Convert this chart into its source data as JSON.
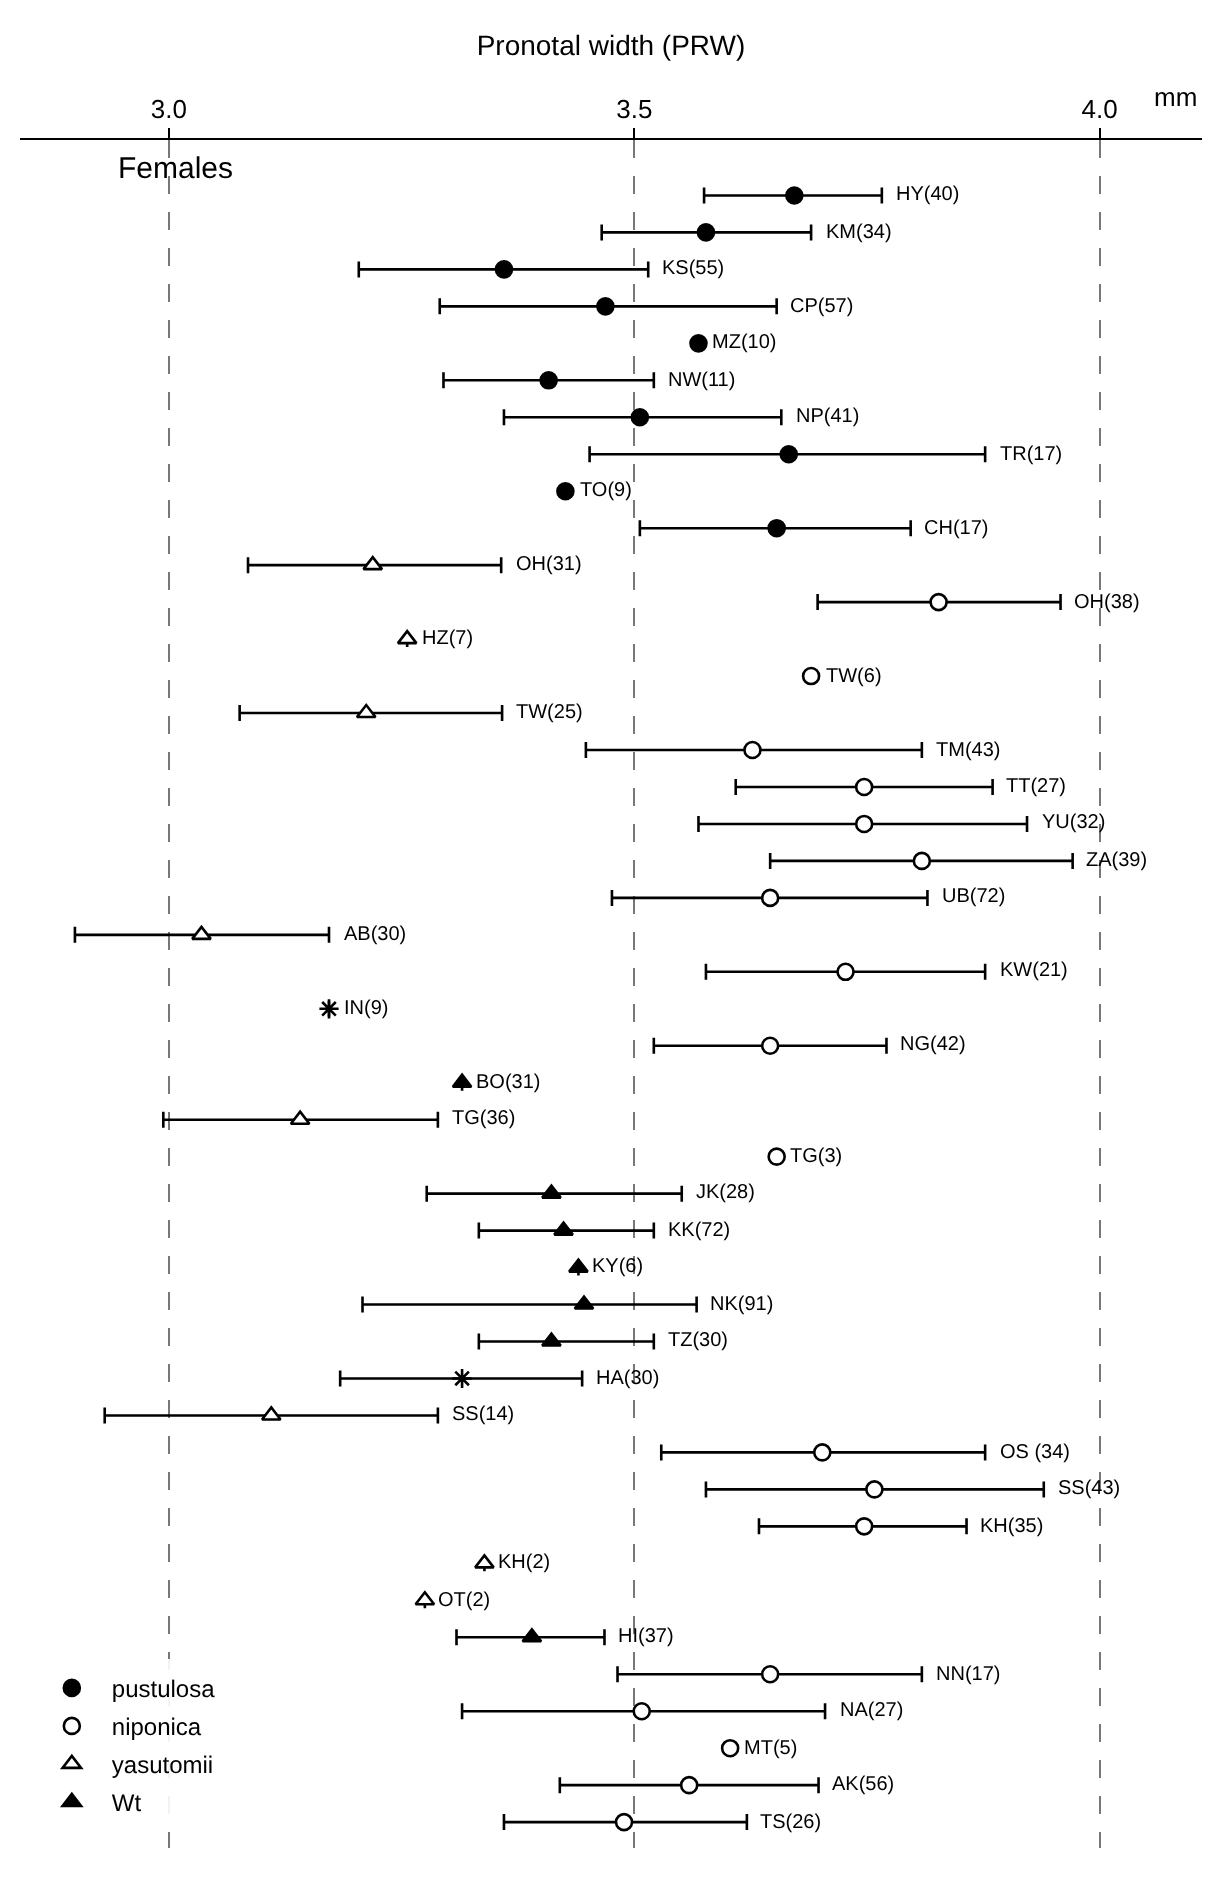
{
  "chart_data": {
    "type": "scatter",
    "orientation": "horizontal",
    "xlabel": "Pronotal width (PRW)",
    "annotations": [
      "Females",
      "mm"
    ],
    "categories": [
      "HY(40)",
      "KM(34)",
      "KS(55)",
      "CP(57)",
      "MZ(10)",
      "NW(11)",
      "NP(41)",
      "TR(17)",
      "TO(9)",
      "CH(17)",
      "OH(31)",
      "OH(38)",
      "HZ(7)",
      "TW(6)",
      "TW(25)",
      "TM(43)",
      "TT(27)",
      "YU(32)",
      "ZA(39)",
      "UB(72)",
      "AB(30)",
      "KW(21)",
      "IN(9)",
      "NG(42)",
      "BO(31)",
      "TG(36)",
      "TG(3)",
      "JK(28)",
      "KK(72)",
      "KY(6)",
      "NK(91)",
      "TZ(30)",
      "HA(30)",
      "SS(14)",
      "OS (34)",
      "SS(43)",
      "KH(35)",
      "KH(2)",
      "OT(2)",
      "HI(37)",
      "NN(17)",
      "NA(27)",
      "MT(5)",
      "AK(56)",
      "TS(26)"
    ],
    "xlim": [
      2.84,
      4.11
    ],
    "xticks": [
      {
        "value": 3.0,
        "label": "3.0"
      },
      {
        "value": 3.5,
        "label": "3.5"
      },
      {
        "value": 4.0,
        "label": "4.0"
      }
    ],
    "grid": "x",
    "tick_labels": "x",
    "legend": "bottom left",
    "series": [
      {
        "name": "pustulosa",
        "color": "#000000",
        "marker": "circle",
        "values": [
          3.672,
          3.577,
          3.36,
          3.469,
          3.569,
          3.408,
          3.506,
          3.666,
          3.426,
          3.653,
          null,
          null,
          null,
          null,
          null,
          null,
          null,
          null,
          null,
          null,
          null,
          null,
          null,
          null,
          null,
          null,
          null,
          null,
          null,
          null,
          null,
          null,
          null,
          null,
          null,
          null,
          null,
          null,
          null,
          null,
          null,
          null,
          null,
          null,
          null
        ],
        "errors": [
          [
            3.575,
            3.766
          ],
          [
            3.465,
            3.69
          ],
          [
            3.204,
            3.515
          ],
          [
            3.291,
            3.653
          ],
          null,
          [
            3.295,
            3.521
          ],
          [
            3.36,
            3.658
          ],
          [
            3.452,
            3.877
          ],
          null,
          [
            3.506,
            3.797
          ],
          null,
          null,
          null,
          null,
          null,
          null,
          null,
          null,
          null,
          null,
          null,
          null,
          null,
          null,
          null,
          null,
          null,
          null,
          null,
          null,
          null,
          null,
          null,
          null,
          null,
          null,
          null,
          null,
          null,
          null,
          null,
          null,
          null,
          null,
          null
        ]
      },
      {
        "name": "niponica",
        "color": "#ffffff",
        "marker": "circle",
        "values": [
          null,
          null,
          null,
          null,
          null,
          null,
          null,
          null,
          null,
          null,
          null,
          3.827,
          null,
          3.69,
          null,
          3.627,
          3.747,
          3.747,
          3.809,
          3.646,
          null,
          3.727,
          null,
          3.646,
          null,
          null,
          3.653,
          null,
          null,
          null,
          null,
          null,
          null,
          null,
          3.702,
          3.758,
          3.747,
          null,
          null,
          null,
          3.646,
          3.508,
          3.603,
          3.559,
          3.489
        ],
        "errors": [
          null,
          null,
          null,
          null,
          null,
          null,
          null,
          null,
          null,
          null,
          null,
          [
            3.697,
            3.958
          ],
          null,
          null,
          null,
          [
            3.448,
            3.809
          ],
          [
            3.609,
            3.885
          ],
          [
            3.569,
            3.922
          ],
          [
            3.646,
            3.971
          ],
          [
            3.476,
            3.815
          ],
          null,
          [
            3.577,
            3.877
          ],
          null,
          [
            3.521,
            3.771
          ],
          null,
          null,
          null,
          null,
          null,
          null,
          null,
          null,
          null,
          null,
          [
            3.529,
            3.877
          ],
          [
            3.577,
            3.94
          ],
          [
            3.634,
            3.857
          ],
          null,
          null,
          null,
          [
            3.482,
            3.809
          ],
          [
            3.315,
            3.705
          ],
          null,
          [
            3.42,
            3.698
          ],
          [
            3.36,
            3.621
          ]
        ]
      },
      {
        "name": "yasutomii",
        "color": "#ffffff",
        "marker": "triangle",
        "values": [
          null,
          null,
          null,
          null,
          null,
          null,
          null,
          null,
          null,
          null,
          3.219,
          null,
          3.256,
          null,
          3.212,
          null,
          null,
          null,
          null,
          null,
          3.035,
          null,
          null,
          null,
          null,
          3.141,
          null,
          null,
          null,
          null,
          null,
          null,
          null,
          3.11,
          null,
          null,
          null,
          3.339,
          3.275,
          null,
          null,
          null,
          null,
          null,
          null
        ],
        "errors": [
          null,
          null,
          null,
          null,
          null,
          null,
          null,
          null,
          null,
          null,
          [
            3.085,
            3.357
          ],
          null,
          null,
          null,
          [
            3.076,
            3.358
          ],
          null,
          null,
          null,
          null,
          null,
          [
            2.899,
            3.172
          ],
          null,
          null,
          null,
          null,
          [
            2.994,
            3.289
          ],
          null,
          null,
          null,
          null,
          null,
          null,
          null,
          [
            2.931,
            3.289
          ],
          null,
          null,
          null,
          null,
          null,
          null,
          null,
          null,
          null,
          null,
          null
        ]
      },
      {
        "name": "Wt",
        "color": "#000000",
        "marker": "triangle",
        "values": [
          null,
          null,
          null,
          null,
          null,
          null,
          null,
          null,
          null,
          null,
          null,
          null,
          null,
          null,
          null,
          null,
          null,
          null,
          null,
          null,
          null,
          null,
          null,
          null,
          3.315,
          null,
          null,
          3.411,
          3.424,
          3.44,
          3.446,
          3.411,
          null,
          null,
          null,
          null,
          null,
          null,
          null,
          3.39,
          null,
          null,
          null,
          null,
          null
        ],
        "errors": [
          null,
          null,
          null,
          null,
          null,
          null,
          null,
          null,
          null,
          null,
          null,
          null,
          null,
          null,
          null,
          null,
          null,
          null,
          null,
          null,
          null,
          null,
          null,
          null,
          null,
          null,
          null,
          [
            3.277,
            3.551
          ],
          [
            3.333,
            3.521
          ],
          null,
          [
            3.208,
            3.567
          ],
          [
            3.333,
            3.521
          ],
          null,
          null,
          null,
          null,
          null,
          null,
          null,
          [
            3.309,
            3.468
          ],
          null,
          null,
          null,
          null,
          null
        ]
      },
      {
        "color": "#000000",
        "marker": "cross",
        "values": [
          null,
          null,
          null,
          null,
          null,
          null,
          null,
          null,
          null,
          null,
          null,
          null,
          null,
          null,
          null,
          null,
          null,
          null,
          null,
          null,
          null,
          null,
          3.172,
          null,
          null,
          null,
          null,
          null,
          null,
          null,
          null,
          null,
          3.315,
          null,
          null,
          null,
          null,
          null,
          null,
          null,
          null,
          null,
          null,
          null,
          null
        ],
        "errors": [
          null,
          null,
          null,
          null,
          null,
          null,
          null,
          null,
          null,
          null,
          null,
          null,
          null,
          null,
          null,
          null,
          null,
          null,
          null,
          null,
          null,
          null,
          null,
          null,
          null,
          null,
          null,
          null,
          null,
          null,
          null,
          null,
          [
            3.184,
            3.444
          ],
          null,
          null,
          null,
          null,
          null,
          null,
          null,
          null,
          null,
          null,
          null,
          null
        ]
      }
    ]
  }
}
